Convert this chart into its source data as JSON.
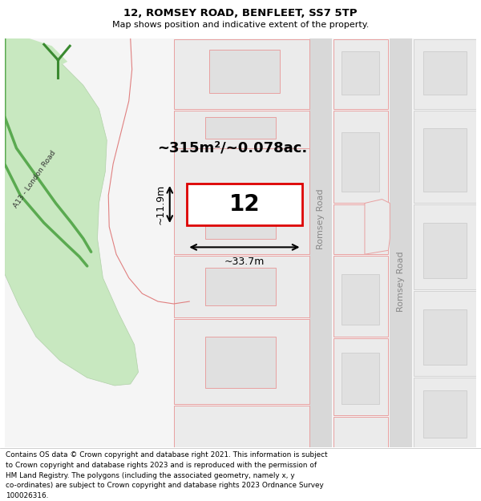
{
  "title": "12, ROMSEY ROAD, BENFLEET, SS7 5TP",
  "subtitle": "Map shows position and indicative extent of the property.",
  "footer_text": "Contains OS data © Crown copyright and database right 2021. This information is subject\nto Crown copyright and database rights 2023 and is reproduced with the permission of\nHM Land Registry. The polygons (including the associated geometry, namely x, y\nco-ordinates) are subject to Crown copyright and database rights 2023 Ordnance Survey\n100026316.",
  "area_label": "~315m²/~0.078ac.",
  "number_label": "12",
  "width_label": "~33.7m",
  "height_label": "~11.9m",
  "map_bg": "#f5f5f5",
  "plot_outline_color": "#dd0000",
  "plot_fill_color": "#ffffff",
  "block_fill": "#ebebeb",
  "block_edge": "#e8a0a0",
  "block_lw": 0.7,
  "inner_fill": "#e0e0e0",
  "road_fill": "#d8d8d8",
  "road_edge": "#c0c0c0",
  "green_color": "#c8e8c0",
  "green_edge": "#b0d0a8",
  "road_label_color": "#888888",
  "a13_label_color": "#444444",
  "arrow_color": "#000000",
  "white": "#ffffff"
}
